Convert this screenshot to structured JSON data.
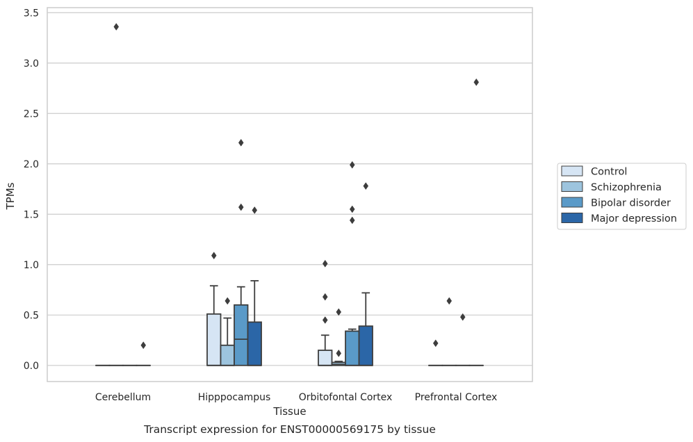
{
  "caption": "Transcript expression for ENST00000569175 by tissue",
  "chart_data": {
    "type": "box",
    "xlabel": "Tissue",
    "ylabel": "TPMs",
    "ylim": [
      -0.16,
      3.55
    ],
    "yticks": [
      "0.0",
      "0.5",
      "1.0",
      "1.5",
      "2.0",
      "2.5",
      "3.0",
      "3.5"
    ],
    "ytick_values": [
      0,
      0.5,
      1.0,
      1.5,
      2.0,
      2.5,
      3.0,
      3.5
    ],
    "grid": "horizontal",
    "legend_position": "right",
    "categories": [
      "Cerebellum",
      "Hipppocampus",
      "Orbitofontal Cortex",
      "Prefrontal Cortex"
    ],
    "series": [
      {
        "name": "Control",
        "color": "#d6e5f4",
        "boxes": [
          {
            "q1": 0,
            "median": 0,
            "q3": 0,
            "whisker_low": 0,
            "whisker_high": 0,
            "outliers": []
          },
          {
            "q1": 0,
            "median": 0,
            "q3": 0.51,
            "whisker_low": 0,
            "whisker_high": 0.79,
            "outliers": [
              1.09
            ]
          },
          {
            "q1": 0,
            "median": 0,
            "q3": 0.15,
            "whisker_low": 0,
            "whisker_high": 0.3,
            "outliers": [
              0.45,
              0.68,
              1.01
            ]
          },
          {
            "q1": 0,
            "median": 0,
            "q3": 0,
            "whisker_low": 0,
            "whisker_high": 0,
            "outliers": [
              0.22
            ]
          }
        ]
      },
      {
        "name": "Schizophrenia",
        "color": "#9dc4de",
        "boxes": [
          {
            "q1": 0,
            "median": 0,
            "q3": 0,
            "whisker_low": 0,
            "whisker_high": 0,
            "outliers": [
              3.36
            ]
          },
          {
            "q1": 0,
            "median": 0,
            "q3": 0.2,
            "whisker_low": 0,
            "whisker_high": 0.47,
            "outliers": [
              0.64
            ]
          },
          {
            "q1": 0,
            "median": 0.01,
            "q3": 0.03,
            "whisker_low": 0,
            "whisker_high": 0.04,
            "outliers": [
              0.12,
              0.53
            ]
          },
          {
            "q1": 0,
            "median": 0,
            "q3": 0,
            "whisker_low": 0,
            "whisker_high": 0,
            "outliers": [
              0.64
            ]
          }
        ]
      },
      {
        "name": "Bipolar disorder",
        "color": "#5a9ac8",
        "boxes": [
          {
            "q1": 0,
            "median": 0,
            "q3": 0,
            "whisker_low": 0,
            "whisker_high": 0,
            "outliers": []
          },
          {
            "q1": 0,
            "median": 0.26,
            "q3": 0.6,
            "whisker_low": 0,
            "whisker_high": 0.78,
            "outliers": [
              1.57,
              2.21
            ]
          },
          {
            "q1": 0,
            "median": 0,
            "q3": 0.34,
            "whisker_low": 0,
            "whisker_high": 0.36,
            "outliers": [
              1.44,
              1.55,
              1.99
            ]
          },
          {
            "q1": 0,
            "median": 0,
            "q3": 0,
            "whisker_low": 0,
            "whisker_high": 0,
            "outliers": [
              0.48
            ]
          }
        ]
      },
      {
        "name": "Major depression",
        "color": "#2b66a7",
        "boxes": [
          {
            "q1": 0,
            "median": 0,
            "q3": 0,
            "whisker_low": 0,
            "whisker_high": 0,
            "outliers": [
              0.2
            ]
          },
          {
            "q1": 0,
            "median": 0,
            "q3": 0.43,
            "whisker_low": 0,
            "whisker_high": 0.84,
            "outliers": [
              1.54
            ]
          },
          {
            "q1": 0,
            "median": 0,
            "q3": 0.39,
            "whisker_low": 0,
            "whisker_high": 0.72,
            "outliers": [
              1.78
            ]
          },
          {
            "q1": 0,
            "median": 0,
            "q3": 0,
            "whisker_low": 0,
            "whisker_high": 0,
            "outliers": [
              2.81
            ]
          }
        ]
      }
    ]
  }
}
